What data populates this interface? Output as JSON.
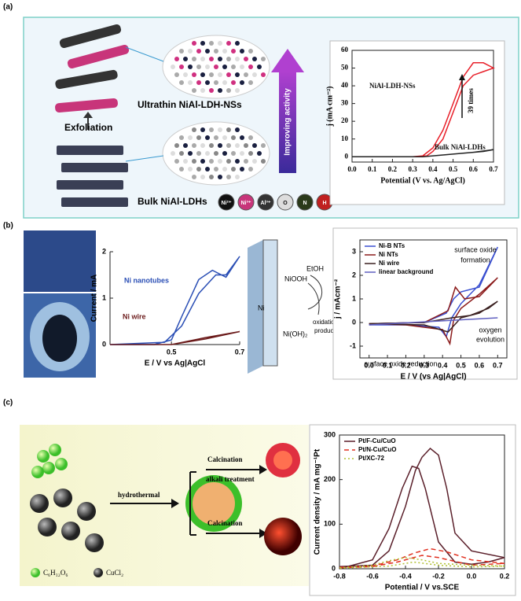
{
  "figure": {
    "a": {
      "label": "(a)",
      "exfoliation": "Exfoliation",
      "ultrathin": "Ultrathin NiAl-LDH-NSs",
      "bulk": "Bulk NiAl-LDHs",
      "activity": "Improving activity",
      "ions": [
        "Ni²⁺",
        "Ni³⁺",
        "Al³⁺",
        "O",
        "N",
        "H"
      ]
    },
    "b": {
      "label": "(b)",
      "niooh": "NiOOH",
      "etoh": "EtOH",
      "ni": "Ni",
      "nioh2": "Ni(OH)₂",
      "products": [
        "oxidation",
        "products"
      ]
    },
    "c": {
      "label": "(c)",
      "hydrothermal": "hydrothermal",
      "calcination_top": "Calcination",
      "alkali": "alkali treatment",
      "calcination_bottom": "Calcination",
      "glucose": "C₆H₁₂O₆",
      "cucl2": "CuCl₂"
    }
  },
  "chart_data": [
    {
      "type": "line",
      "xlabel": "Potential (V vs. Ag/AgCl)",
      "ylabel": "j (mA cm⁻²)",
      "xlim": [
        0,
        0.7
      ],
      "xticks": [
        {
          "value": 0,
          "label": "0.0"
        },
        0.1,
        0.2,
        0.3,
        0.4,
        0.5,
        0.6,
        0.7
      ],
      "ylim": [
        -3,
        60
      ],
      "yticks": [
        0,
        10,
        20,
        30,
        40,
        50,
        60
      ],
      "legend": "inline",
      "annotations": [
        "39 times"
      ],
      "series": [
        {
          "name": "NiAl-LDH-NSs",
          "color": "#e8202a",
          "x": [
            0,
            0.3,
            0.35,
            0.4,
            0.45,
            0.5,
            0.55,
            0.6,
            0.65,
            0.7,
            0.65,
            0.6,
            0.55,
            0.5,
            0.45,
            0.4,
            0.37,
            0.3,
            0
          ],
          "values": [
            0,
            0,
            0.5,
            5,
            15,
            30,
            45,
            53,
            53,
            50,
            48,
            46,
            40,
            25,
            10,
            3,
            0.5,
            0,
            0
          ]
        },
        {
          "name": "Bulk NiAl-LDHs",
          "color": "#222222",
          "x": [
            0,
            0.35,
            0.45,
            0.55,
            0.65,
            0.7,
            0.6,
            0.5,
            0.4,
            0.35
          ],
          "values": [
            0,
            0,
            1,
            2,
            3,
            4,
            2.5,
            1.5,
            0.5,
            0
          ]
        }
      ]
    },
    {
      "type": "line",
      "xlabel": "E / V vs Ag|AgCl",
      "ylabel": "Current / mA",
      "xlim": [
        0.32,
        0.7
      ],
      "xticks": [
        0.5,
        0.7
      ],
      "ylim": [
        0,
        2
      ],
      "yticks": [
        0,
        1,
        2
      ],
      "legend": "inline",
      "series": [
        {
          "name": "Ni nanotubes",
          "color": "#2b4fb5",
          "x": [
            0.32,
            0.48,
            0.53,
            0.58,
            0.63,
            0.66,
            0.7,
            0.66,
            0.62,
            0.58,
            0.53,
            0.5,
            0.45,
            0.32
          ],
          "values": [
            0,
            0.05,
            0.4,
            1.1,
            1.5,
            1.5,
            1.9,
            1.45,
            1.6,
            1.4,
            0.6,
            0.1,
            0,
            0
          ]
        },
        {
          "name": "Ni wire",
          "color": "#6b1a1a",
          "x": [
            0.32,
            0.5,
            0.6,
            0.7,
            0.6,
            0.5,
            0.32
          ],
          "values": [
            0,
            0,
            0.15,
            0.28,
            0.12,
            0,
            0
          ]
        }
      ]
    },
    {
      "type": "line",
      "xlabel": "E / V (vs Ag|AgCl)",
      "ylabel": "j / mAcm⁻²",
      "xlim": [
        -0.05,
        0.75
      ],
      "xticks": [
        {
          "value": 0,
          "label": "0.0"
        },
        0.1,
        0.2,
        0.3,
        0.4,
        0.5,
        0.6,
        0.7
      ],
      "ylim": [
        -1.5,
        3.5
      ],
      "yticks": [
        -1,
        0,
        1,
        2,
        3
      ],
      "legend": "upper left",
      "annotations": [
        "surface oxide",
        "formation",
        "oxygen",
        "evolution",
        "surface oxide reduction"
      ],
      "series": [
        {
          "name": "Ni-B NTs",
          "color": "#3a4fd0",
          "x": [
            0,
            0.3,
            0.42,
            0.46,
            0.5,
            0.6,
            0.7,
            0.6,
            0.5,
            0.45,
            0.42,
            0.38,
            0.2,
            0
          ],
          "values": [
            -0.05,
            0,
            0.4,
            1.0,
            1.3,
            1.5,
            3.2,
            1.6,
            0.8,
            0.2,
            -0.6,
            -0.2,
            -0.1,
            -0.1
          ]
        },
        {
          "name": "Ni NTs",
          "color": "#8b1a1a",
          "x": [
            0,
            0.3,
            0.43,
            0.47,
            0.52,
            0.6,
            0.7,
            0.6,
            0.5,
            0.46,
            0.44,
            0.4,
            0.2,
            0
          ],
          "values": [
            -0.05,
            0,
            0.5,
            1.5,
            1.0,
            1.1,
            1.9,
            1.2,
            0.6,
            0.1,
            -0.9,
            -0.3,
            -0.1,
            -0.05
          ]
        },
        {
          "name": "Ni wire",
          "color": "#3a2020",
          "x": [
            0,
            0.3,
            0.45,
            0.55,
            0.65,
            0.7,
            0.6,
            0.5,
            0.43,
            0.3,
            0
          ],
          "values": [
            -0.05,
            0,
            0.2,
            0.3,
            0.6,
            0.9,
            0.4,
            0.2,
            -0.4,
            -0.1,
            -0.05
          ]
        },
        {
          "name": "linear background",
          "color": "#6060c0",
          "x": [
            0,
            0.7
          ],
          "values": [
            -0.1,
            0.2
          ]
        }
      ]
    },
    {
      "type": "line",
      "xlabel": "Potential / V vs.SCE",
      "ylabel": "Current density / mA mg⁻¹Pt",
      "xlim": [
        -0.8,
        0.2
      ],
      "xticks": [
        -0.8,
        -0.6,
        -0.4,
        -0.2,
        {
          "value": 0,
          "label": "0.0"
        },
        0.2
      ],
      "ylim": [
        0,
        300
      ],
      "yticks": [
        0,
        100,
        200,
        300
      ],
      "legend": "upper left",
      "series": [
        {
          "name": "Pt/F-Cu/CuO",
          "color": "#5a1f2a",
          "dash": "solid",
          "x": [
            -0.8,
            -0.6,
            -0.5,
            -0.4,
            -0.34,
            -0.3,
            -0.25,
            -0.2,
            -0.15,
            -0.1,
            0,
            0.2,
            0.1,
            0,
            -0.1,
            -0.2,
            -0.28,
            -0.32,
            -0.36,
            -0.42,
            -0.5,
            -0.6,
            -0.8
          ],
          "values": [
            5,
            8,
            40,
            140,
            220,
            250,
            270,
            255,
            180,
            80,
            40,
            25,
            15,
            10,
            15,
            60,
            180,
            225,
            230,
            180,
            90,
            20,
            0
          ]
        },
        {
          "name": "Pt/N-Cu/CuO",
          "color": "#e03020",
          "dash": "dashed",
          "x": [
            -0.8,
            -0.6,
            -0.45,
            -0.35,
            -0.25,
            -0.15,
            0,
            0.2,
            0,
            -0.2,
            -0.3,
            -0.45,
            -0.6,
            -0.8
          ],
          "values": [
            3,
            6,
            20,
            35,
            45,
            38,
            20,
            12,
            8,
            25,
            30,
            15,
            5,
            2
          ]
        },
        {
          "name": "Pt/XC-72",
          "color": "#b0c030",
          "dash": "dotted",
          "x": [
            -0.8,
            -0.6,
            -0.5,
            -0.4,
            -0.3,
            -0.2,
            0,
            0.2,
            0,
            -0.2,
            -0.35,
            -0.5,
            -0.8
          ],
          "values": [
            2,
            8,
            18,
            25,
            20,
            12,
            8,
            6,
            4,
            8,
            15,
            6,
            1
          ]
        }
      ]
    }
  ]
}
